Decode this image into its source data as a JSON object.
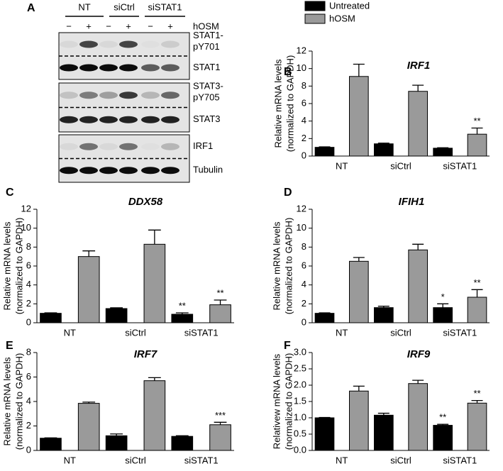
{
  "blot": {
    "panel": "A",
    "groups": [
      "NT",
      "siCtrl",
      "siSTAT1"
    ],
    "treatment": "hOSM",
    "lane_marks": [
      "−",
      "+",
      "−",
      "+",
      "−",
      "+"
    ],
    "rows": [
      [
        "STAT1-",
        "pY701"
      ],
      [
        "STAT1"
      ],
      [
        "STAT3-",
        "pY705"
      ],
      [
        "STAT3"
      ],
      [
        "IRF1"
      ],
      [
        "Tubulin"
      ]
    ]
  },
  "chart_data": [
    {
      "type": "bar",
      "panel": "B",
      "title": "IRF1",
      "ylabel": [
        "Relative mRNA levels",
        "(normalized to GAPDH)"
      ],
      "categories": [
        "NT",
        "siCtrl",
        "siSTAT1"
      ],
      "legend": true,
      "series": [
        {
          "name": "Untreated",
          "color": "#000000",
          "values": [
            1,
            1.4,
            0.9
          ],
          "errors": [
            0.05,
            0.08,
            0.05
          ],
          "significance": [
            null,
            null,
            null
          ]
        },
        {
          "name": "hOSM",
          "color": "#9a9a9a",
          "values": [
            9.1,
            7.4,
            2.5
          ],
          "errors": [
            1.4,
            0.7,
            0.7
          ],
          "significance": [
            null,
            null,
            "**"
          ]
        }
      ],
      "ylim": [
        0,
        12
      ],
      "yticks": [
        0,
        2,
        4,
        6,
        8,
        10,
        12
      ]
    },
    {
      "type": "bar",
      "panel": "C",
      "title": "DDX58",
      "ylabel": [
        "Relative mRNA levels",
        "(normalized to GAPDH)"
      ],
      "categories": [
        "NT",
        "siCtrl",
        "siSTAT1"
      ],
      "legend": false,
      "series": [
        {
          "name": "Untreated",
          "color": "#000000",
          "values": [
            1,
            1.5,
            0.9
          ],
          "errors": [
            0.05,
            0.08,
            0.15
          ],
          "significance": [
            null,
            null,
            "**"
          ]
        },
        {
          "name": "hOSM",
          "color": "#9a9a9a",
          "values": [
            7.0,
            8.3,
            1.9
          ],
          "errors": [
            0.6,
            1.5,
            0.5
          ],
          "significance": [
            null,
            null,
            "**"
          ]
        }
      ],
      "ylim": [
        0,
        12
      ],
      "yticks": [
        0,
        2,
        4,
        6,
        8,
        10,
        12
      ]
    },
    {
      "type": "bar",
      "panel": "D",
      "title": "IFIH1",
      "ylabel": [
        "Relative mRNA levels",
        "(normalized to GAPDH)"
      ],
      "categories": [
        "NT",
        "siCtrl",
        "siSTAT1"
      ],
      "legend": false,
      "series": [
        {
          "name": "Untreated",
          "color": "#000000",
          "values": [
            1,
            1.6,
            1.6
          ],
          "errors": [
            0.05,
            0.15,
            0.4
          ],
          "significance": [
            null,
            null,
            "*"
          ]
        },
        {
          "name": "hOSM",
          "color": "#9a9a9a",
          "values": [
            6.5,
            7.7,
            2.7
          ],
          "errors": [
            0.4,
            0.6,
            0.8
          ],
          "significance": [
            null,
            null,
            "**"
          ]
        }
      ],
      "ylim": [
        0,
        12
      ],
      "yticks": [
        0,
        2,
        4,
        6,
        8,
        10,
        12
      ]
    },
    {
      "type": "bar",
      "panel": "E",
      "title": "IRF7",
      "ylabel": [
        "Relative mRNA levels",
        "(normalized to GAPDH)"
      ],
      "categories": [
        "NT",
        "siCtrl",
        "siSTAT1"
      ],
      "legend": false,
      "series": [
        {
          "name": "Untreated",
          "color": "#000000",
          "values": [
            1,
            1.2,
            1.15
          ],
          "errors": [
            0.03,
            0.15,
            0.05
          ],
          "significance": [
            null,
            null,
            null
          ]
        },
        {
          "name": "hOSM",
          "color": "#9a9a9a",
          "values": [
            3.85,
            5.7,
            2.1
          ],
          "errors": [
            0.1,
            0.25,
            0.2
          ],
          "significance": [
            null,
            null,
            "***"
          ]
        }
      ],
      "ylim": [
        0,
        8
      ],
      "yticks": [
        0,
        2,
        4,
        6,
        8
      ]
    },
    {
      "type": "bar",
      "panel": "F",
      "title": "IRF9",
      "ylabel": [
        "Relativew mRNA levels",
        "(normalized to GAPDH)"
      ],
      "categories": [
        "NT",
        "siCtrl",
        "siSTAT1"
      ],
      "legend": false,
      "series": [
        {
          "name": "Untreated",
          "color": "#000000",
          "values": [
            1.0,
            1.08,
            0.77
          ],
          "errors": [
            0.01,
            0.06,
            0.03
          ],
          "significance": [
            null,
            null,
            "**"
          ]
        },
        {
          "name": "hOSM",
          "color": "#9a9a9a",
          "values": [
            1.82,
            2.05,
            1.45
          ],
          "errors": [
            0.15,
            0.1,
            0.08
          ],
          "significance": [
            null,
            null,
            "**"
          ]
        }
      ],
      "ylim": [
        0,
        3
      ],
      "yticks": [
        {
          "value": 0,
          "label": "0.0"
        },
        0.5,
        {
          "value": 1,
          "label": "1.0"
        },
        1.5,
        {
          "value": 2,
          "label": "2.0"
        },
        2.5,
        {
          "value": 3,
          "label": "3.0"
        }
      ]
    }
  ]
}
